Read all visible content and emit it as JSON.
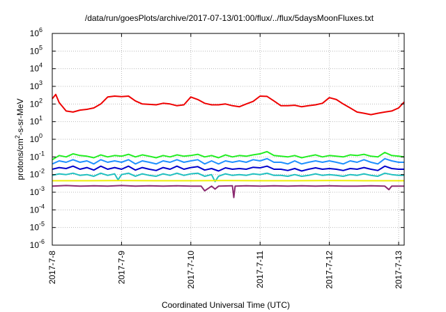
{
  "chart_data": {
    "type": "line",
    "title": "/data/run/goesPlots/archive/2017-07-13/01:00/flux/../flux/5daysMoonFluxes.txt",
    "xlabel": "Coordinated Universal Time (UTC)",
    "ylabel_parts": {
      "pre": "protons/cm",
      "sup": "2",
      "post": "-s-sr-MeV"
    },
    "y_scale": "log",
    "ylim": [
      1e-06,
      1000000.0
    ],
    "xlim_days": [
      0,
      5.08
    ],
    "grid": true,
    "legend": "none",
    "y_ticks": [
      {
        "value": -6,
        "base": "10",
        "exp": "-6"
      },
      {
        "value": -5,
        "base": "10",
        "exp": "-5"
      },
      {
        "value": -4,
        "base": "10",
        "exp": "-4"
      },
      {
        "value": -3,
        "base": "10",
        "exp": "-3"
      },
      {
        "value": -2,
        "base": "10",
        "exp": "-2"
      },
      {
        "value": -1,
        "base": "10",
        "exp": "-1"
      },
      {
        "value": 0,
        "base": "10",
        "exp": "0"
      },
      {
        "value": 1,
        "base": "10",
        "exp": "1"
      },
      {
        "value": 2,
        "base": "10",
        "exp": "2"
      },
      {
        "value": 3,
        "base": "10",
        "exp": "3"
      },
      {
        "value": 4,
        "base": "10",
        "exp": "4"
      },
      {
        "value": 5,
        "base": "10",
        "exp": "5"
      },
      {
        "value": 6,
        "base": "10",
        "exp": "6"
      }
    ],
    "x_ticks": [
      {
        "day": 0,
        "label": "2017-7-8"
      },
      {
        "day": 1,
        "label": "2017-7-9"
      },
      {
        "day": 2,
        "label": "2017-7-10"
      },
      {
        "day": 3,
        "label": "2017-7-11"
      },
      {
        "day": 4,
        "label": "2017-7-12"
      },
      {
        "day": 5,
        "label": "2017-7-13"
      }
    ],
    "series": [
      {
        "color": "#ee0000",
        "x": [
          0,
          0.05,
          0.1,
          0.2,
          0.3,
          0.4,
          0.5,
          0.6,
          0.7,
          0.8,
          0.9,
          1.0,
          1.1,
          1.2,
          1.3,
          1.4,
          1.5,
          1.6,
          1.7,
          1.8,
          1.9,
          2.0,
          2.1,
          2.2,
          2.3,
          2.4,
          2.5,
          2.6,
          2.7,
          2.8,
          2.9,
          3.0,
          3.1,
          3.2,
          3.3,
          3.4,
          3.5,
          3.6,
          3.7,
          3.8,
          3.9,
          4.0,
          4.1,
          4.2,
          4.3,
          4.4,
          4.5,
          4.6,
          4.7,
          4.8,
          4.9,
          5.0,
          5.08
        ],
        "values": [
          200,
          350,
          120,
          40,
          35,
          45,
          50,
          60,
          100,
          250,
          280,
          260,
          280,
          150,
          100,
          95,
          90,
          110,
          100,
          80,
          90,
          250,
          180,
          110,
          90,
          90,
          100,
          80,
          70,
          100,
          140,
          280,
          270,
          150,
          80,
          80,
          85,
          70,
          80,
          90,
          110,
          230,
          180,
          100,
          60,
          35,
          30,
          25,
          30,
          35,
          40,
          60,
          130
        ]
      },
      {
        "color": "#22ee22",
        "x": [
          0,
          0.1,
          0.2,
          0.3,
          0.4,
          0.5,
          0.6,
          0.7,
          0.8,
          0.9,
          1.0,
          1.1,
          1.2,
          1.3,
          1.4,
          1.5,
          1.6,
          1.7,
          1.8,
          1.9,
          2.0,
          2.1,
          2.2,
          2.3,
          2.4,
          2.5,
          2.6,
          2.7,
          2.8,
          2.9,
          3.0,
          3.1,
          3.2,
          3.3,
          3.4,
          3.5,
          3.6,
          3.7,
          3.8,
          3.9,
          4.0,
          4.1,
          4.2,
          4.3,
          4.4,
          4.5,
          4.6,
          4.7,
          4.8,
          4.9,
          5.0,
          5.08
        ],
        "values": [
          0.07,
          0.12,
          0.1,
          0.15,
          0.12,
          0.11,
          0.09,
          0.13,
          0.1,
          0.12,
          0.11,
          0.14,
          0.1,
          0.13,
          0.11,
          0.09,
          0.12,
          0.1,
          0.13,
          0.11,
          0.12,
          0.14,
          0.1,
          0.12,
          0.09,
          0.13,
          0.1,
          0.12,
          0.11,
          0.13,
          0.15,
          0.2,
          0.12,
          0.11,
          0.1,
          0.12,
          0.09,
          0.11,
          0.13,
          0.1,
          0.12,
          0.11,
          0.1,
          0.13,
          0.12,
          0.14,
          0.11,
          0.1,
          0.18,
          0.12,
          0.11,
          0.1
        ]
      },
      {
        "color": "#1e90ff",
        "x": [
          0,
          0.1,
          0.2,
          0.3,
          0.4,
          0.5,
          0.6,
          0.7,
          0.8,
          0.9,
          1.0,
          1.1,
          1.2,
          1.3,
          1.4,
          1.5,
          1.6,
          1.7,
          1.8,
          1.9,
          2.0,
          2.1,
          2.2,
          2.3,
          2.4,
          2.5,
          2.6,
          2.7,
          2.8,
          2.9,
          3.0,
          3.1,
          3.2,
          3.3,
          3.4,
          3.5,
          3.6,
          3.7,
          3.8,
          3.9,
          4.0,
          4.1,
          4.2,
          4.3,
          4.4,
          4.5,
          4.6,
          4.7,
          4.8,
          4.9,
          5.0,
          5.08
        ],
        "values": [
          0.04,
          0.06,
          0.05,
          0.07,
          0.05,
          0.06,
          0.04,
          0.07,
          0.05,
          0.06,
          0.05,
          0.07,
          0.04,
          0.06,
          0.05,
          0.04,
          0.06,
          0.05,
          0.07,
          0.05,
          0.06,
          0.07,
          0.04,
          0.06,
          0.04,
          0.06,
          0.05,
          0.06,
          0.05,
          0.07,
          0.06,
          0.08,
          0.05,
          0.05,
          0.04,
          0.06,
          0.04,
          0.05,
          0.06,
          0.05,
          0.06,
          0.05,
          0.04,
          0.06,
          0.05,
          0.07,
          0.05,
          0.04,
          0.08,
          0.06,
          0.05,
          0.05
        ]
      },
      {
        "color": "#0000cc",
        "x": [
          0,
          0.1,
          0.2,
          0.3,
          0.4,
          0.5,
          0.6,
          0.7,
          0.8,
          0.9,
          1.0,
          1.1,
          1.2,
          1.3,
          1.4,
          1.5,
          1.6,
          1.7,
          1.8,
          1.9,
          2.0,
          2.1,
          2.2,
          2.3,
          2.4,
          2.5,
          2.6,
          2.7,
          2.8,
          2.9,
          3.0,
          3.1,
          3.2,
          3.3,
          3.4,
          3.5,
          3.6,
          3.7,
          3.8,
          3.9,
          4.0,
          4.1,
          4.2,
          4.3,
          4.4,
          4.5,
          4.6,
          4.7,
          4.8,
          4.9,
          5.0,
          5.08
        ],
        "values": [
          0.02,
          0.025,
          0.022,
          0.03,
          0.02,
          0.025,
          0.018,
          0.03,
          0.02,
          0.025,
          0.02,
          0.03,
          0.018,
          0.025,
          0.02,
          0.017,
          0.025,
          0.02,
          0.03,
          0.02,
          0.025,
          0.028,
          0.018,
          0.022,
          0.016,
          0.024,
          0.02,
          0.022,
          0.02,
          0.026,
          0.024,
          0.03,
          0.02,
          0.02,
          0.017,
          0.022,
          0.016,
          0.02,
          0.024,
          0.02,
          0.022,
          0.02,
          0.017,
          0.022,
          0.02,
          0.025,
          0.02,
          0.017,
          0.03,
          0.022,
          0.02,
          0.02
        ]
      },
      {
        "color": "#20c0c0",
        "x": [
          0,
          0.1,
          0.2,
          0.3,
          0.4,
          0.5,
          0.6,
          0.7,
          0.8,
          0.9,
          0.95,
          1.0,
          1.1,
          1.2,
          1.3,
          1.4,
          1.5,
          1.6,
          1.7,
          1.8,
          1.9,
          2.0,
          2.1,
          2.2,
          2.3,
          2.35,
          2.4,
          2.5,
          2.6,
          2.7,
          2.8,
          2.9,
          3.0,
          3.1,
          3.2,
          3.3,
          3.4,
          3.5,
          3.6,
          3.7,
          3.8,
          3.9,
          4.0,
          4.1,
          4.2,
          4.3,
          4.4,
          4.5,
          4.6,
          4.7,
          4.8,
          4.9,
          5.0,
          5.08
        ],
        "values": [
          0.009,
          0.011,
          0.01,
          0.012,
          0.009,
          0.01,
          0.008,
          0.012,
          0.009,
          0.011,
          0.005,
          0.01,
          0.012,
          0.008,
          0.011,
          0.009,
          0.008,
          0.011,
          0.009,
          0.012,
          0.009,
          0.011,
          0.012,
          0.008,
          0.01,
          0.004,
          0.008,
          0.011,
          0.009,
          0.01,
          0.009,
          0.011,
          0.01,
          0.012,
          0.009,
          0.009,
          0.008,
          0.01,
          0.008,
          0.009,
          0.011,
          0.009,
          0.01,
          0.009,
          0.008,
          0.01,
          0.009,
          0.011,
          0.009,
          0.008,
          0.012,
          0.01,
          0.009,
          0.009
        ]
      },
      {
        "color": "#eeee00",
        "x": [
          0,
          0.5,
          1.0,
          1.5,
          2.0,
          2.5,
          3.0,
          3.5,
          4.0,
          4.5,
          5.0,
          5.08
        ],
        "values": [
          0.0045,
          0.0045,
          0.0046,
          0.0045,
          0.0045,
          0.0046,
          0.0045,
          0.0045,
          0.0046,
          0.0045,
          0.0045,
          0.0045
        ]
      },
      {
        "color": "#8b2a70",
        "x": [
          0,
          0.2,
          0.4,
          0.6,
          0.8,
          1.0,
          1.2,
          1.4,
          1.6,
          1.8,
          2.0,
          2.15,
          2.2,
          2.3,
          2.35,
          2.4,
          2.6,
          2.62,
          2.64,
          2.8,
          3.0,
          3.2,
          3.4,
          3.6,
          3.8,
          4.0,
          4.2,
          4.4,
          4.6,
          4.8,
          4.86,
          4.9,
          5.08
        ],
        "values": [
          0.0022,
          0.0024,
          0.0022,
          0.0023,
          0.0022,
          0.0024,
          0.0022,
          0.0023,
          0.0022,
          0.0023,
          0.0022,
          0.0022,
          0.0012,
          0.0022,
          0.0015,
          0.0022,
          0.0023,
          0.0005,
          0.0022,
          0.0023,
          0.0022,
          0.0023,
          0.0022,
          0.0023,
          0.0022,
          0.0023,
          0.0022,
          0.0022,
          0.0023,
          0.0022,
          0.0014,
          0.0022,
          0.0022
        ]
      }
    ]
  }
}
